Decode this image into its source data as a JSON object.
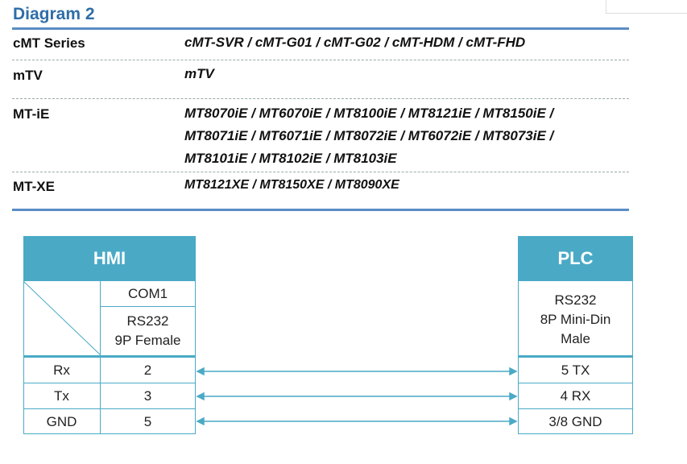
{
  "title": "Diagram 2",
  "models": [
    {
      "series": "cMT Series",
      "lines": [
        "cMT-SVR / cMT-G01 / cMT-G02 / cMT-HDM / cMT-FHD"
      ]
    },
    {
      "series": "mTV",
      "lines": [
        "mTV"
      ]
    },
    {
      "series": "MT-iE",
      "lines": [
        "MT8070iE / MT6070iE / MT8100iE / MT8121iE / MT8150iE /",
        "MT8071iE / MT6071iE / MT8072iE / MT6072iE / MT8073iE /",
        "MT8101iE / MT8102iE / MT8103iE"
      ]
    },
    {
      "series": "MT-XE",
      "lines": [
        "MT8121XE / MT8150XE / MT8090XE"
      ]
    }
  ],
  "hmi": {
    "title": "HMI",
    "port": "COM1",
    "interface": "RS232\n9P Female"
  },
  "plc": {
    "title": "PLC",
    "interface": "RS232\n8P Mini-Din\nMale"
  },
  "wiring": [
    {
      "signal": "Rx",
      "hmi_pin": "2",
      "plc_pin": "5 TX"
    },
    {
      "signal": "Tx",
      "hmi_pin": "3",
      "plc_pin": "4 RX"
    },
    {
      "signal": "GND",
      "hmi_pin": "5",
      "plc_pin": "3/8 GND"
    }
  ],
  "colors": {
    "accent": "#4aaac6",
    "title": "#2f6ea8"
  }
}
